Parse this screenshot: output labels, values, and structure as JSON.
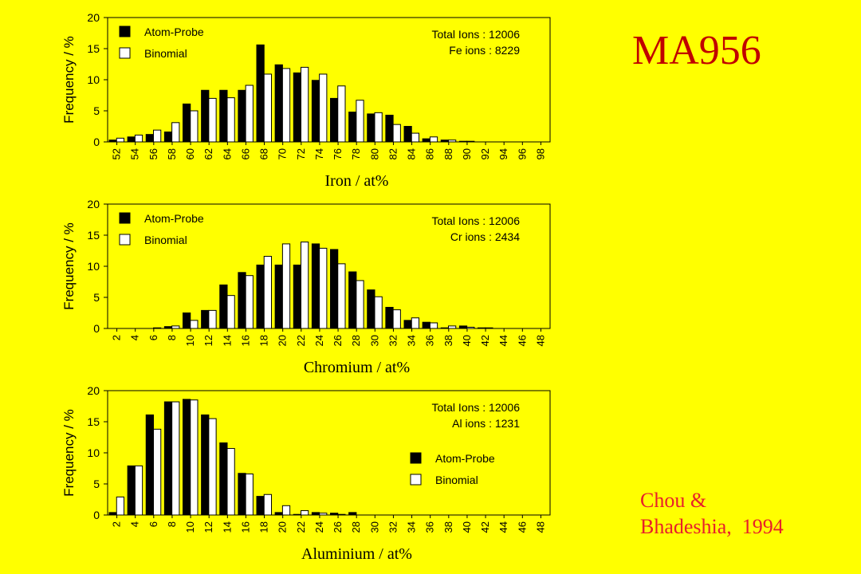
{
  "title": "MA956",
  "citation": [
    "Chou &",
    "Bhadeshia,  1994"
  ],
  "colors": {
    "background": "#ffff00",
    "title": "#c00000",
    "citation": "#e8202a",
    "atom_probe": "#000000",
    "binomial": "#ffffff"
  },
  "chart_data": [
    {
      "type": "bar",
      "xlabel": "Iron / at%",
      "ylabel": "Frequency / %",
      "ylim": [
        0,
        20
      ],
      "yticks": [
        "0",
        "5",
        "10",
        "15",
        "20"
      ],
      "categories": [
        "52",
        "54",
        "56",
        "58",
        "60",
        "62",
        "64",
        "66",
        "68",
        "70",
        "72",
        "74",
        "76",
        "78",
        "80",
        "82",
        "84",
        "86",
        "88",
        "90",
        "92",
        "94",
        "96",
        "98"
      ],
      "series": [
        {
          "name": "Atom-Probe",
          "color": "#000000",
          "values": [
            0.3,
            0.8,
            1.2,
            1.6,
            6.1,
            8.3,
            8.3,
            8.3,
            15.6,
            12.4,
            11.1,
            9.9,
            7.0,
            4.8,
            4.5,
            4.3,
            2.5,
            0.5,
            0.3,
            0.1,
            0,
            0,
            0,
            0
          ]
        },
        {
          "name": "Binomial",
          "color": "#ffffff",
          "values": [
            0.6,
            1.1,
            1.9,
            3.1,
            5.0,
            7.0,
            7.1,
            9.1,
            10.9,
            11.8,
            12.0,
            10.9,
            9.0,
            6.7,
            4.7,
            2.8,
            1.4,
            0.8,
            0.3,
            0.1,
            0,
            0,
            0,
            0
          ]
        }
      ],
      "annotation": [
        "Total Ions : 12006",
        "Fe ions :  8229"
      ],
      "legend_position": "top-left"
    },
    {
      "type": "bar",
      "xlabel": "Chromium / at%",
      "ylabel": "Frequency / %",
      "ylim": [
        0,
        20
      ],
      "yticks": [
        "0",
        "5",
        "10",
        "15",
        "20"
      ],
      "categories": [
        "2",
        "4",
        "6",
        "8",
        "10",
        "12",
        "14",
        "16",
        "18",
        "20",
        "22",
        "24",
        "26",
        "28",
        "30",
        "32",
        "34",
        "36",
        "38",
        "40",
        "42",
        "44",
        "46",
        "48"
      ],
      "series": [
        {
          "name": "Atom-Probe",
          "color": "#000000",
          "values": [
            0,
            0,
            0,
            0.3,
            2.5,
            2.9,
            7.0,
            9.0,
            10.2,
            10.2,
            10.2,
            13.6,
            12.7,
            9.1,
            6.2,
            3.4,
            1.3,
            1.0,
            0.1,
            0.4,
            0.1,
            0,
            0,
            0
          ]
        },
        {
          "name": "Binomial",
          "color": "#ffffff",
          "values": [
            0,
            0,
            0.1,
            0.4,
            1.3,
            2.9,
            5.3,
            8.5,
            11.6,
            13.6,
            13.9,
            12.9,
            10.4,
            7.7,
            5.1,
            3.0,
            1.7,
            0.9,
            0.4,
            0.2,
            0.1,
            0,
            0,
            0
          ]
        }
      ],
      "annotation": [
        "Total Ions : 12006",
        "Cr ions : 2434"
      ],
      "legend_position": "top-left"
    },
    {
      "type": "bar",
      "xlabel": "Aluminium / at%",
      "ylabel": "Frequency / %",
      "ylim": [
        0,
        20
      ],
      "yticks": [
        "0",
        "5",
        "10",
        "15",
        "20"
      ],
      "categories": [
        "2",
        "4",
        "6",
        "8",
        "10",
        "12",
        "14",
        "16",
        "18",
        "20",
        "22",
        "24",
        "26",
        "28",
        "30",
        "32",
        "34",
        "36",
        "38",
        "40",
        "42",
        "44",
        "46",
        "48"
      ],
      "series": [
        {
          "name": "Atom-Probe",
          "color": "#000000",
          "values": [
            0.4,
            7.9,
            16.1,
            18.2,
            18.6,
            16.1,
            11.6,
            6.7,
            3.0,
            0.4,
            0.1,
            0.4,
            0.3,
            0.4,
            0,
            0,
            0,
            0,
            0,
            0,
            0,
            0,
            0,
            0
          ]
        },
        {
          "name": "Binomial",
          "color": "#ffffff",
          "values": [
            2.9,
            7.9,
            13.8,
            18.2,
            18.5,
            15.5,
            10.7,
            6.6,
            3.3,
            1.5,
            0.7,
            0.3,
            0.1,
            0,
            0,
            0,
            0,
            0,
            0,
            0,
            0,
            0,
            0,
            0
          ]
        }
      ],
      "annotation": [
        "Total Ions : 12006",
        "Al ions : 1231"
      ],
      "legend_position": "right"
    }
  ]
}
